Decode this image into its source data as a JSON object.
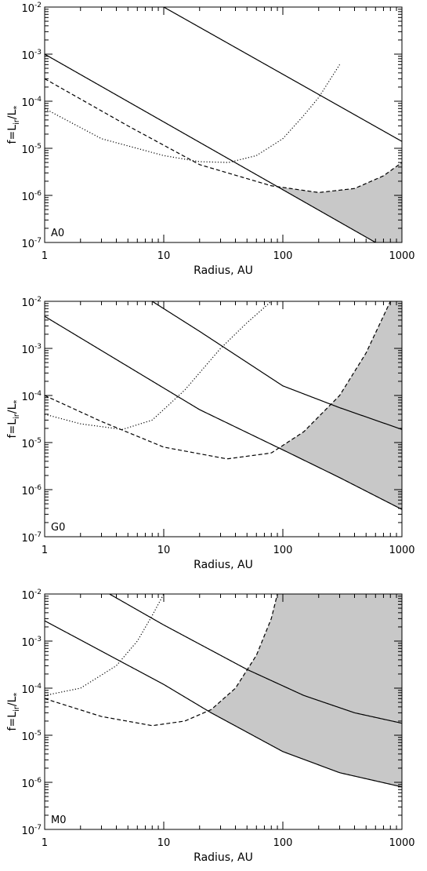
{
  "chart_data": [
    {
      "type": "line",
      "panel_label": "A0",
      "xlabel": "Radius, AU",
      "ylabel": "f=L_ir/L_*",
      "xscale": "log",
      "yscale": "log",
      "xlim": [
        1,
        1000
      ],
      "ylim": [
        1e-07,
        0.01
      ],
      "x_tick_labels": [
        "1",
        "10",
        "100",
        "1000"
      ],
      "y_tick_labels": [
        "10^-7",
        "10^-6",
        "10^-5",
        "10^-4",
        "10^-3",
        "10^-2"
      ],
      "series": [
        {
          "style": "solid",
          "x": [
            10,
            1000
          ],
          "y": [
            0.01,
            1.4e-05
          ]
        },
        {
          "style": "solid",
          "x": [
            1,
            600
          ],
          "y": [
            0.001,
            1e-07
          ]
        },
        {
          "style": "dashed",
          "x": [
            1,
            5,
            20,
            80,
            200,
            400,
            700,
            1000
          ],
          "y": [
            0.0003,
            3e-05,
            4.5e-06,
            1.6e-06,
            1.15e-06,
            1.4e-06,
            2.6e-06,
            5e-06
          ]
        },
        {
          "style": "dotted",
          "x": [
            1,
            3,
            10,
            20,
            35,
            60,
            100,
            150,
            200,
            300
          ],
          "y": [
            7e-05,
            1.6e-05,
            7e-06,
            5.2e-06,
            5e-06,
            7e-06,
            1.6e-05,
            5e-05,
            0.00012,
            0.0006
          ]
        }
      ],
      "shaded_region": "between dashed curve (upper) and lower solid line (lower) for r > 80 AU"
    },
    {
      "type": "line",
      "panel_label": "G0",
      "xlabel": "Radius, AU",
      "ylabel": "f=L_ir/L_*",
      "xscale": "log",
      "yscale": "log",
      "xlim": [
        1,
        1000
      ],
      "ylim": [
        1e-07,
        0.01
      ],
      "x_tick_labels": [
        "1",
        "10",
        "100",
        "1000"
      ],
      "y_tick_labels": [
        "10^-7",
        "10^-6",
        "10^-5",
        "10^-4",
        "10^-3",
        "10^-2"
      ],
      "series": [
        {
          "style": "solid",
          "x": [
            8,
            20,
            100,
            300,
            1000
          ],
          "y": [
            0.01,
            0.0023,
            0.00016,
            5.5e-05,
            1.9e-05
          ]
        },
        {
          "style": "solid",
          "x": [
            1,
            20,
            100,
            300,
            1000
          ],
          "y": [
            0.0048,
            5e-05,
            7e-06,
            1.8e-06,
            3.8e-07
          ]
        },
        {
          "style": "dashed",
          "x": [
            1,
            3,
            10,
            34,
            80,
            150,
            300,
            500,
            800
          ],
          "y": [
            0.0001,
            2.8e-05,
            8e-06,
            4.5e-06,
            6e-06,
            1.7e-05,
            0.0001,
            0.0008,
            0.01
          ]
        },
        {
          "style": "dotted",
          "x": [
            1,
            2,
            4.5,
            8,
            15,
            30,
            50,
            80
          ],
          "y": [
            4e-05,
            2.5e-05,
            1.9e-05,
            3e-05,
            0.00013,
            0.001,
            0.0035,
            0.01
          ]
        }
      ],
      "shaded_region": "between dashed curve (upper) and lower solid line (lower) for r > 90 AU"
    },
    {
      "type": "line",
      "panel_label": "M0",
      "xlabel": "Radius, AU",
      "ylabel": "f=L_ir/L_*",
      "xscale": "log",
      "yscale": "log",
      "xlim": [
        1,
        1000
      ],
      "ylim": [
        1e-07,
        0.01
      ],
      "x_tick_labels": [
        "1",
        "10",
        "100",
        "1000"
      ],
      "y_tick_labels": [
        "10^-7",
        "10^-6",
        "10^-5",
        "10^-4",
        "10^-3",
        "10^-2"
      ],
      "series": [
        {
          "style": "solid",
          "x": [
            3.5,
            10,
            50,
            150,
            400,
            1000
          ],
          "y": [
            0.01,
            0.0022,
            0.00025,
            7e-05,
            3e-05,
            1.8e-05
          ]
        },
        {
          "style": "solid",
          "x": [
            1,
            10,
            25,
            100,
            300,
            1000
          ],
          "y": [
            0.0027,
            0.00012,
            3e-05,
            4.5e-06,
            1.6e-06,
            8e-07
          ]
        },
        {
          "style": "dashed",
          "x": [
            1,
            3,
            8,
            15,
            25,
            40,
            60,
            80,
            90
          ],
          "y": [
            6e-05,
            2.5e-05,
            1.6e-05,
            2e-05,
            3.5e-05,
            0.0001,
            0.0005,
            0.003,
            0.01
          ]
        },
        {
          "style": "dotted",
          "x": [
            1,
            2,
            4,
            6,
            8,
            10
          ],
          "y": [
            7e-05,
            0.0001,
            0.0003,
            0.001,
            0.0035,
            0.01
          ]
        }
      ],
      "shaded_region": "between dashed curve (upper, capped at top) and lower solid line (lower) for r > 25 AU"
    }
  ]
}
